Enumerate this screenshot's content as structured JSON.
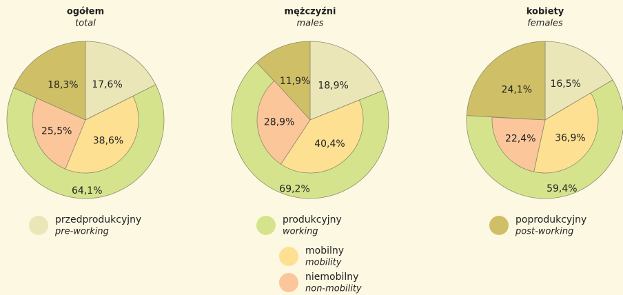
{
  "chart_data": [
    {
      "type": "pie",
      "title": "ogółem",
      "subtitle": "total",
      "values": [
        17.6,
        64.1,
        18.3
      ],
      "value_labels": [
        "17,6%",
        "64,1%",
        "18,3%"
      ],
      "inner_values": [
        38.6,
        25.5
      ],
      "inner_value_labels": [
        "38,6%",
        "25,5%"
      ]
    },
    {
      "type": "pie",
      "title": "mężczyźni",
      "subtitle": "males",
      "values": [
        18.9,
        69.2,
        11.9
      ],
      "value_labels": [
        "18,9%",
        "69,2%",
        "11,9%"
      ],
      "inner_values": [
        40.4,
        28.9
      ],
      "inner_value_labels": [
        "40,4%",
        "28,9%"
      ]
    },
    {
      "type": "pie",
      "title": "kobiety",
      "subtitle": "females",
      "values": [
        16.5,
        59.4,
        24.1
      ],
      "value_labels": [
        "16,5%",
        "59,4%",
        "24,1%"
      ],
      "inner_values": [
        36.9,
        22.4
      ],
      "inner_value_labels": [
        "36,9%",
        "22,4%"
      ]
    }
  ],
  "legend": [
    {
      "label": "przedprodukcyjny",
      "translation": "pre-working",
      "color": "#ebe6b8"
    },
    {
      "label": "produkcyjny",
      "translation": "working",
      "color": "#d5e48c"
    },
    {
      "label": "poprodukcyjny",
      "translation": "post-working",
      "color": "#cfc067"
    },
    {
      "label": "mobilny",
      "translation": "mobility",
      "color": "#fee092"
    },
    {
      "label": "niemobilny",
      "translation": "non-mobility",
      "color": "#fbc69a"
    }
  ]
}
